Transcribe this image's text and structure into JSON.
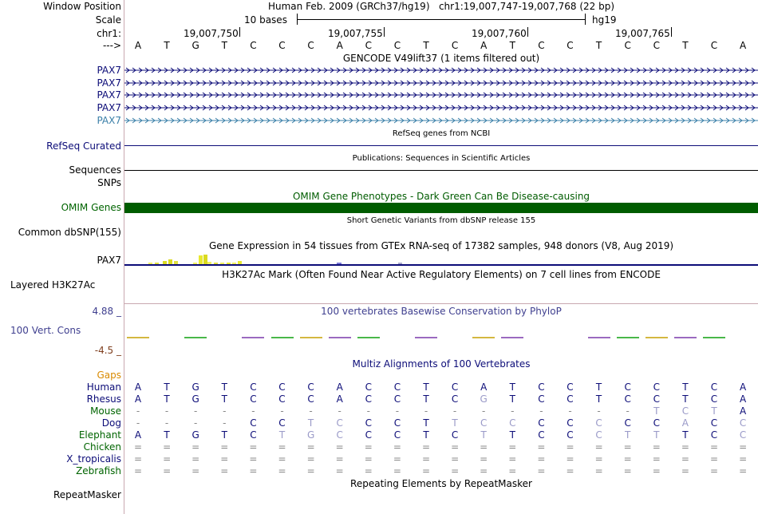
{
  "labels": {
    "window_position": "Window Position",
    "scale": "Scale",
    "chr": "chr1:",
    "arrow": "--->",
    "omim_genes": "OMIM Genes",
    "refseq_curated": "RefSeq Curated",
    "sequences": "Sequences",
    "snps": "SNPs",
    "common_dbsnp": "Common dbSNP(155)",
    "pax7_gtex": "PAX7",
    "layered": "Layered H3K27Ac",
    "phylop_max": "4.88 _",
    "vert_cons": "100 Vert. Cons",
    "phylop_min": "-4.5 _",
    "gaps": "Gaps",
    "repeatmasker": "RepeatMasker"
  },
  "pax7_labels": [
    "PAX7",
    "PAX7",
    "PAX7",
    "PAX7",
    "PAX7"
  ],
  "header": {
    "assembly": "Human Feb. 2009 (GRCh37/hg19)",
    "position": "chr1:19,007,747-19,007,768 (22 bp)",
    "scale_text": "10 bases",
    "scale_db": "hg19"
  },
  "ruler": {
    "ticks": [
      "19,007,750",
      "19,007,755",
      "19,007,760",
      "19,007,765"
    ]
  },
  "bases": [
    "A",
    "T",
    "G",
    "T",
    "C",
    "C",
    "C",
    "A",
    "C",
    "C",
    "T",
    "C",
    "A",
    "T",
    "C",
    "C",
    "T",
    "C",
    "C",
    "T",
    "C",
    "A"
  ],
  "tracks": {
    "gencode": "GENCODE V49lift37 (1 items filtered out)",
    "refseq": "RefSeq genes from NCBI",
    "publications": "Publications: Sequences in Scientific Articles",
    "omim": "OMIM Gene Phenotypes - Dark Green Can Be Disease-causing",
    "dbsnp": "Short Genetic Variants from dbSNP release 155",
    "gtex": "Gene Expression in 54 tissues from GTEx RNA-seq of 17382 samples, 948 donors (V8, Aug 2019)",
    "h3k27ac": "H3K27Ac Mark (Often Found Near Active Regulatory Elements) on 7 cell lines from ENCODE",
    "phylop": "100 vertebrates Basewise Conservation by PhyloP",
    "multiz": "Multiz Alignments of 100 Vertebrates",
    "repeatmasker": "Repeating Elements by RepeatMasker"
  },
  "colors": {
    "gencode": "#0c0c78",
    "gencode_last": "#3a7fa8",
    "refseq": "#0c0c78",
    "omim": "#005c00",
    "cons": "#3f3f8f",
    "cons_min": "#7f3f1f",
    "gaps": "#d98a00",
    "tracklabel_green": "#006400"
  },
  "multiz": {
    "species": [
      {
        "name": "Human",
        "seq": "ATGTCCCACCTCATCCTCCTCA"
      },
      {
        "name": "Rhesus",
        "seq": "ATGTCCCACCTCGTCCTCCTCA"
      },
      {
        "name": "Mouse",
        "seq": "------------------TCTA"
      },
      {
        "name": "Dog",
        "seq": "----CCTCCCTTCCCCCCCACC"
      },
      {
        "name": "Elephant",
        "seq": "ATGTCTGCCCTCTTCCCTTTCC"
      },
      {
        "name": "Chicken",
        "seq": "======================"
      },
      {
        "name": "X_tropicalis",
        "seq": "======================"
      },
      {
        "name": "Zebrafish",
        "seq": "======================"
      }
    ]
  },
  "gtex_bars": [
    0.1,
    0.05,
    0.35,
    0.5,
    0.3,
    0.2,
    0.9,
    1.0,
    0.25,
    0.15,
    0.2,
    0.15,
    0.1,
    0.3,
    0.2,
    0.05
  ],
  "phylop": [
    0.05,
    0.0,
    0.1,
    0.0,
    0.3,
    0.1,
    0.6,
    0.1,
    0.2,
    0.0,
    0.15,
    0.0,
    0.4,
    0.5,
    0.0,
    0.0,
    0.2,
    0.3,
    0.1,
    0.2,
    0.2,
    0.0
  ]
}
